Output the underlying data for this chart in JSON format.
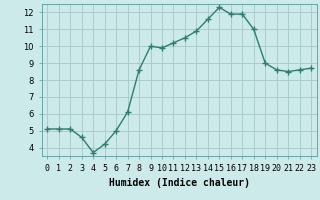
{
  "x": [
    0,
    1,
    2,
    3,
    4,
    5,
    6,
    7,
    8,
    9,
    10,
    11,
    12,
    13,
    14,
    15,
    16,
    17,
    18,
    19,
    20,
    21,
    22,
    23
  ],
  "y": [
    5.1,
    5.1,
    5.1,
    4.6,
    3.7,
    4.2,
    5.0,
    6.1,
    8.6,
    10.0,
    9.9,
    10.2,
    10.5,
    10.9,
    11.6,
    12.3,
    11.9,
    11.9,
    11.0,
    9.0,
    8.6,
    8.5,
    8.6,
    8.7
  ],
  "line_color": "#2e7d6e",
  "marker": "+",
  "marker_size": 4,
  "bg_color": "#cceaea",
  "grid_color": "#aacccc",
  "xlabel": "Humidex (Indice chaleur)",
  "xlim": [
    -0.5,
    23.5
  ],
  "ylim": [
    3.5,
    12.5
  ],
  "yticks": [
    4,
    5,
    6,
    7,
    8,
    9,
    10,
    11,
    12
  ],
  "xlabel_fontsize": 7,
  "tick_fontsize": 6,
  "line_width": 1.0
}
